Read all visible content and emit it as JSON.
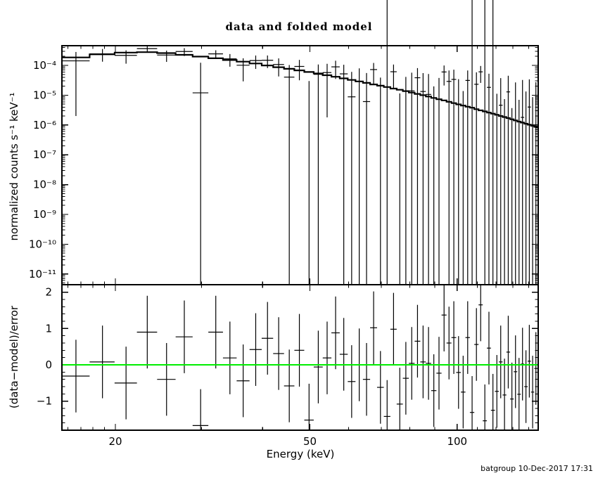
{
  "title": "data and folded model",
  "stamp": "batgroup 10-Dec-2017 17:31",
  "labels": {
    "xlabel": "Energy (keV)",
    "ylabel_top": "normalized counts s⁻¹ keV⁻¹",
    "ylabel_bottom": "(data−model)/error"
  },
  "colors": {
    "background": "#ffffff",
    "frame": "#000000",
    "data": "#000000",
    "model": "#000000",
    "zero_line": "#00ee00",
    "text": "#000000"
  },
  "chart_data": {
    "type": "errorbar-spectrum",
    "title": "data and folded model",
    "xlabel": "Energy (keV)",
    "ylabel_top": "normalized counts s⁻¹ keV⁻¹",
    "ylabel_bottom": "(data−model)/error",
    "x_scale": "log",
    "y_scale_top": "log",
    "y_scale_bottom": "linear",
    "xlim": [
      15.5,
      146
    ],
    "ylim_top": [
      4.4e-12,
      0.00046
    ],
    "ylim_bottom": [
      -1.8,
      2.2
    ],
    "x_major_ticks": [
      20,
      50,
      100
    ],
    "x_major_tick_labels": [
      "20",
      "50",
      "100"
    ],
    "x_minor_ticks": [
      16,
      17,
      18,
      19,
      30,
      40,
      60,
      70,
      80,
      90,
      110,
      120,
      130,
      140
    ],
    "y_major_ticks_top": [
      0.0001,
      1e-05,
      1e-06,
      1e-07,
      1e-08,
      1e-09,
      1e-10,
      1e-11
    ],
    "y_major_tick_labels_top": [
      "10⁻⁴",
      "10⁻⁵",
      "10⁻⁶",
      "10⁻⁷",
      "10⁻⁸",
      "10⁻⁹",
      "10⁻¹⁰",
      "10⁻¹¹"
    ],
    "y_major_ticks_bottom": [
      2,
      1,
      0,
      -1
    ],
    "y_major_tick_labels_bottom": [
      "2",
      "1",
      "0",
      "−1"
    ],
    "zero_line_bottom": 0,
    "legend": "none",
    "grid": false,
    "energy_kev": [
      16.61,
      18.82,
      21.03,
      23.24,
      25.45,
      27.67,
      29.88,
      32.09,
      34.3,
      36.51,
      38.73,
      40.94,
      43.15,
      45.36,
      47.57,
      49.79,
      52.0,
      54.21,
      56.42,
      58.63,
      60.85,
      63.06,
      65.27,
      67.48,
      69.69,
      71.91,
      74.12,
      76.33,
      78.54,
      80.75,
      82.97,
      85.18,
      87.39,
      89.6,
      91.81,
      94.03,
      96.24,
      98.45,
      100.66,
      102.87,
      105.09,
      107.3,
      109.51,
      111.72,
      113.93,
      116.15,
      118.36,
      120.57,
      122.78,
      124.99,
      127.21,
      129.42,
      131.63,
      133.84,
      136.05,
      138.27,
      140.48,
      142.69,
      144.9
    ],
    "energy_half_width_kev": 1.106,
    "model": [
      0.000185,
      0.000235,
      0.000268,
      0.000278,
      0.000258,
      0.000226,
      0.000197,
      0.000173,
      0.000151,
      0.000133,
      0.000116,
      9.95e-05,
      8.7e-05,
      7.65e-05,
      6.8e-05,
      6e-05,
      5.35e-05,
      4.68e-05,
      4.15e-05,
      3.66e-05,
      3.25e-05,
      2.9e-05,
      2.58e-05,
      2.3e-05,
      2.08e-05,
      1.88e-05,
      1.67e-05,
      1.52e-05,
      1.37e-05,
      1.22e-05,
      1.1e-05,
      1e-05,
      9e-06,
      8.1e-06,
      7.3e-06,
      6.7e-06,
      6e-06,
      5.4e-06,
      4.9e-06,
      4.5e-06,
      4.1e-06,
      3.8e-06,
      3.4e-06,
      3.1e-06,
      2.85e-06,
      2.6e-06,
      2.4e-06,
      2.2e-06,
      2e-06,
      1.85e-06,
      1.7e-06,
      1.55e-06,
      1.42e-06,
      1.3e-06,
      1.2e-06,
      1.1e-06,
      1.02e-06,
      9.4e-07,
      8.7e-07
    ],
    "data": [
      0.000142,
      0.000244,
      0.000217,
      0.000365,
      0.000222,
      0.000292,
      1.2e-05,
      0.000243,
      0.000165,
      0.000101,
      0.000145,
      0.000148,
      0.000107,
      4.03e-05,
      9.22e-05,
      -2.9e-05,
      5.01e-05,
      5.74e-05,
      8.92e-05,
      5.19e-05,
      8.8e-06,
      2.9e-05,
      6.1e-06,
      7.23e-05,
      -8.5e-06,
      -4.7e-05,
      6.12e-05,
      -3.3e-05,
      -2.5e-06,
      1.39e-05,
      3.85e-05,
      1.33e-05,
      1.06e-05,
      -2.05e-05,
      -1.8e-06,
      6.01e-05,
      2.9e-05,
      3.38e-05,
      -2.9e-06,
      -2.3e-05,
      3.13e-05,
      -4.3e-05,
      2.32e-05,
      6.07e-05,
      -5e-05,
      1.83e-05,
      -3.96e-05,
      -2.2e-05,
      4.6e-06,
      -2.5e-05,
      1.29e-05,
      -2.8e-05,
      -4.5e-06,
      -2.4e-05,
      1.8e-06,
      -1.7e-05,
      4e-06,
      -2.1e-05,
      -2.1e-06
    ],
    "data_error": [
      0.00014,
      0.000111,
      0.000103,
      9.65e-05,
      9.11e-05,
      8.62e-05,
      0.000111,
      7.81e-05,
      7.49e-05,
      7.19e-05,
      6.91e-05,
      6.68e-05,
      6.45e-05,
      6.25e-05,
      6.06e-05,
      5.88e-05,
      5.71e-05,
      5.56e-05,
      5.42e-05,
      5.29e-05,
      5.16e-05,
      5.04e-05,
      4.93e-05,
      4.83e-05,
      4.73e-05,
      4.63e-05,
      4.54e-05,
      4.45e-05,
      4.37e-05,
      4.3e-05,
      4.23e-05,
      4.16e-05,
      4.09e-05,
      4.03e-05,
      3.96e-05,
      3.9e-05,
      3.84e-05,
      3.79e-05,
      3.73e-05,
      3.68e-05,
      3.63e-05,
      3.58e-05,
      3.54e-05,
      3.49e-05,
      3.45e-05,
      3.4e-05,
      3.36e-05,
      3.32e-05,
      3.28e-05,
      3.24e-05,
      3.2e-05,
      3.17e-05,
      3.13e-05,
      3.1e-05,
      3.06e-05,
      3.03e-05,
      3e-05,
      2.96e-05,
      2.93e-05
    ],
    "residual": [
      -0.31,
      0.08,
      -0.5,
      0.9,
      -0.4,
      0.77,
      -1.67,
      0.9,
      0.19,
      -0.44,
      0.42,
      0.73,
      0.31,
      -0.58,
      0.4,
      -1.52,
      -0.06,
      0.19,
      0.88,
      0.29,
      -0.46,
      0.0,
      -0.4,
      1.02,
      -0.62,
      -1.42,
      0.98,
      -1.08,
      -0.37,
      0.04,
      0.65,
      0.08,
      0.04,
      -0.71,
      -0.23,
      1.37,
      0.6,
      0.75,
      -0.21,
      -0.75,
      0.75,
      -1.31,
      0.56,
      1.65,
      -1.54,
      0.46,
      -1.25,
      -0.73,
      0.08,
      -0.83,
      0.35,
      -0.94,
      -0.19,
      -0.81,
      0.02,
      -0.6,
      0.1,
      -0.75,
      -0.1
    ],
    "residual_error": 1.0,
    "timestamp": "batgroup 10-Dec-2017 17:31"
  }
}
